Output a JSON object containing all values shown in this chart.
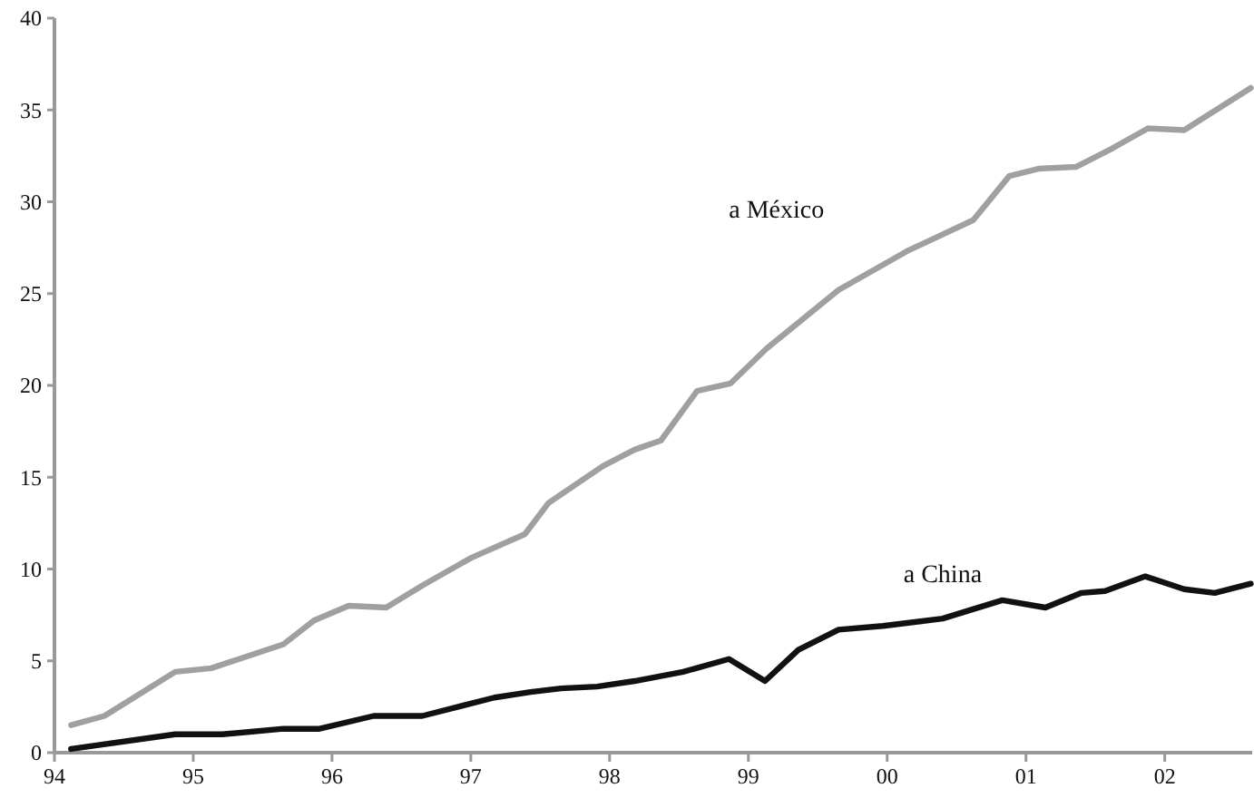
{
  "chart_data": {
    "type": "line",
    "x": [
      1994.12,
      1994.36,
      1994.87,
      1995.13,
      1995.65,
      1995.87,
      1996.12,
      1996.39,
      1996.65,
      1997.0,
      1997.39,
      1997.56,
      1997.95,
      1998.18,
      1998.37,
      1998.63,
      1998.87,
      1999.13,
      1999.65,
      2000.14,
      2000.62,
      2000.88,
      2001.09,
      2001.36,
      2001.62,
      2001.88,
      2002.14,
      2002.62
    ],
    "series": [
      {
        "name": "a México",
        "color": "#a0a0a0",
        "values": [
          1.5,
          2.0,
          4.4,
          4.6,
          5.9,
          7.2,
          8.0,
          7.9,
          9.1,
          10.6,
          11.9,
          13.6,
          15.6,
          16.5,
          17.0,
          19.7,
          20.1,
          22.0,
          25.2,
          27.3,
          29.0,
          31.4,
          31.8,
          31.9,
          32.9,
          34.0,
          33.9,
          36.2
        ]
      },
      {
        "name": "a China",
        "color": "#111111",
        "x": [
          1994.12,
          1994.87,
          1995.21,
          1995.65,
          1995.91,
          1996.3,
          1996.65,
          1996.91,
          1997.17,
          1997.43,
          1997.65,
          1997.91,
          1998.18,
          1998.53,
          1998.86,
          1999.12,
          1999.36,
          1999.65,
          1999.97,
          2000.4,
          2000.83,
          2001.14,
          2001.4,
          2001.57,
          2001.86,
          2002.14,
          2002.36,
          2002.62
        ],
        "values": [
          0.2,
          1.0,
          1.0,
          1.3,
          1.3,
          2.0,
          2.0,
          2.5,
          3.0,
          3.3,
          3.5,
          3.6,
          3.9,
          4.4,
          5.1,
          3.9,
          5.6,
          6.7,
          6.9,
          7.3,
          8.3,
          7.9,
          8.7,
          8.8,
          9.6,
          8.9,
          8.7,
          9.2
        ]
      }
    ],
    "xlim": [
      1994,
      2002.63
    ],
    "xticks": [
      {
        "value": 1994,
        "label": "94"
      },
      {
        "value": 1995,
        "label": "95"
      },
      {
        "value": 1996,
        "label": "96"
      },
      {
        "value": 1997,
        "label": "97"
      },
      {
        "value": 1998,
        "label": "98"
      },
      {
        "value": 1999,
        "label": "99"
      },
      {
        "value": 2000,
        "label": "00"
      },
      {
        "value": 2001,
        "label": "01"
      },
      {
        "value": 2002,
        "label": "02"
      }
    ],
    "ylim": [
      0,
      40
    ],
    "yticks": [
      0,
      5,
      10,
      15,
      20,
      25,
      30,
      35,
      40
    ],
    "marker": "none",
    "line_style": "solid"
  }
}
